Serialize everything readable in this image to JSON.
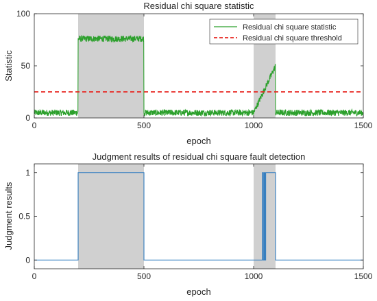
{
  "colors": {
    "statistic": "#2ca02c",
    "threshold": "#e8241f",
    "judgment": "#2f7bbf",
    "shade": "#d0d0d0",
    "axis": "#262626"
  },
  "chart_data": [
    {
      "type": "line",
      "title": "Residual chi square statistic",
      "xlabel": "epoch",
      "ylabel": "Statistic",
      "xlim": [
        0,
        1500
      ],
      "ylim": [
        0,
        100
      ],
      "xticks": [
        0,
        500,
        1000,
        1500
      ],
      "yticks": [
        0,
        50,
        100
      ],
      "legend": "top-right",
      "shaded_intervals": [
        [
          200,
          500
        ],
        [
          1000,
          1100
        ]
      ],
      "series": [
        {
          "name": "Residual chi square statistic",
          "color": "#2ca02c",
          "style": "solid",
          "description_profile": [
            {
              "x_from": 0,
              "x_to": 200,
              "level": 5,
              "noise": 3
            },
            {
              "x_from": 200,
              "x_to": 500,
              "level": 76,
              "noise": 3
            },
            {
              "x_from": 500,
              "x_to": 1000,
              "level": 5,
              "noise": 3
            },
            {
              "x_from": 1000,
              "x_to": 1100,
              "level_start": 5,
              "level_end": 50,
              "noise": 3
            },
            {
              "x_from": 1100,
              "x_to": 1500,
              "level": 5,
              "noise": 3
            }
          ]
        },
        {
          "name": "Residual chi square threshold",
          "color": "#e8241f",
          "style": "dashed",
          "x": [
            0,
            1500
          ],
          "y": [
            25,
            25
          ]
        }
      ]
    },
    {
      "type": "line",
      "title": "Judgment results of residual chi square fault detection",
      "xlabel": "epoch",
      "ylabel": "Judgment results",
      "xlim": [
        0,
        1500
      ],
      "ylim": [
        -0.1,
        1.1
      ],
      "xticks": [
        0,
        500,
        1000,
        1500
      ],
      "yticks": [
        0,
        0.5,
        1
      ],
      "shaded_intervals": [
        [
          200,
          500
        ],
        [
          1000,
          1100
        ]
      ],
      "series": [
        {
          "color": "#2f7bbf",
          "x": [
            0,
            200,
            200,
            500,
            500,
            1040,
            1040,
            1044,
            1044,
            1048,
            1048,
            1051,
            1051,
            1055,
            1055,
            1059,
            1059,
            1100,
            1100,
            1500
          ],
          "y": [
            0,
            0,
            1,
            1,
            0,
            0,
            1,
            1,
            0,
            0,
            1,
            1,
            0,
            0,
            1,
            1,
            1,
            1,
            0,
            0
          ]
        }
      ]
    }
  ]
}
